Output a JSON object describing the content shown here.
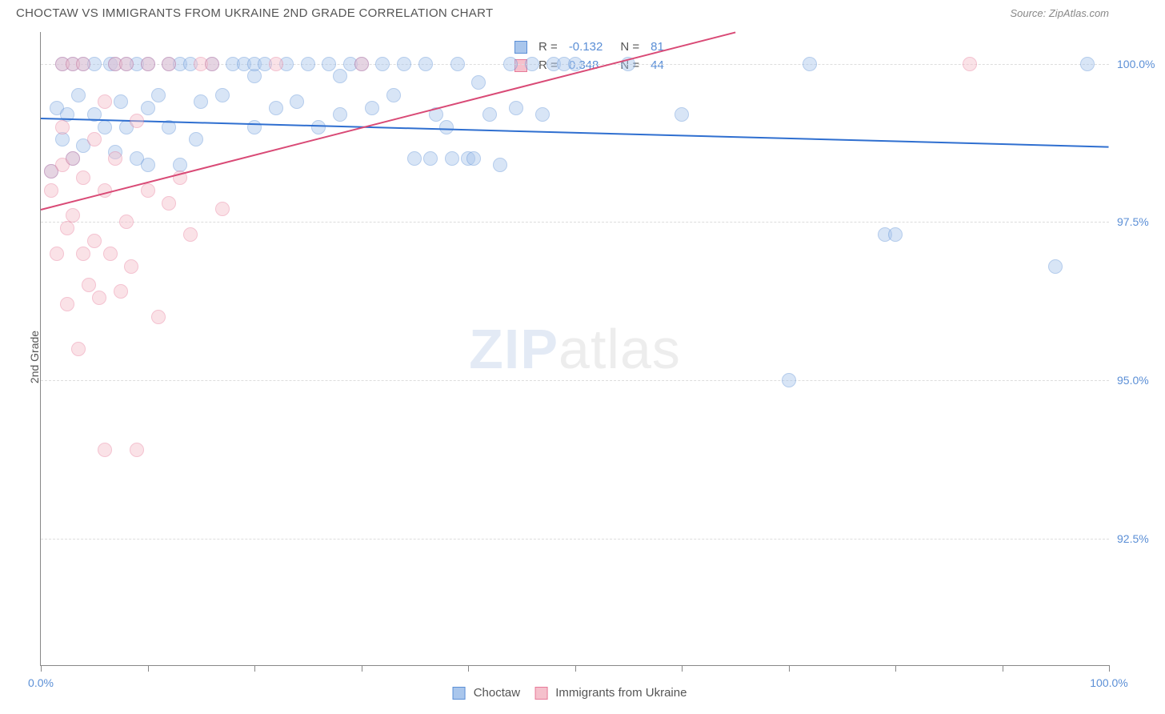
{
  "header": {
    "title": "CHOCTAW VS IMMIGRANTS FROM UKRAINE 2ND GRADE CORRELATION CHART",
    "source": "Source: ZipAtlas.com"
  },
  "chart": {
    "type": "scatter",
    "ylabel": "2nd Grade",
    "watermark_zip": "ZIP",
    "watermark_atlas": "atlas",
    "background_color": "#ffffff",
    "grid_color": "#dddddd",
    "axis_color": "#888888",
    "tick_label_color": "#5b8fd6",
    "xlim": [
      0,
      100
    ],
    "ylim": [
      90.5,
      100.5
    ],
    "ytick_values": [
      92.5,
      95.0,
      97.5,
      100.0
    ],
    "ytick_labels": [
      "92.5%",
      "95.0%",
      "97.5%",
      "100.0%"
    ],
    "xtick_values": [
      0,
      10,
      20,
      30,
      40,
      50,
      60,
      70,
      80,
      90,
      100
    ],
    "xtick_label_left": "0.0%",
    "xtick_label_right": "100.0%",
    "marker_radius": 9,
    "marker_opacity": 0.45,
    "series": [
      {
        "name": "Choctaw",
        "color_fill": "#a9c6ec",
        "color_stroke": "#5b8fd6",
        "trend": {
          "x1": 0,
          "y1": 99.15,
          "x2": 100,
          "y2": 98.7,
          "color": "#2f6fd0",
          "width": 2
        },
        "R": "-0.132",
        "N": "81",
        "points": [
          [
            1,
            98.3
          ],
          [
            1.5,
            99.3
          ],
          [
            2,
            100
          ],
          [
            2,
            98.8
          ],
          [
            2.5,
            99.2
          ],
          [
            3,
            100
          ],
          [
            3,
            98.5
          ],
          [
            3.5,
            99.5
          ],
          [
            4,
            100
          ],
          [
            4,
            98.7
          ],
          [
            5,
            99.2
          ],
          [
            5,
            100
          ],
          [
            6,
            99.0
          ],
          [
            6.5,
            100
          ],
          [
            7,
            98.6
          ],
          [
            7,
            100
          ],
          [
            7.5,
            99.4
          ],
          [
            8,
            99.0
          ],
          [
            8,
            100
          ],
          [
            9,
            100
          ],
          [
            9,
            98.5
          ],
          [
            10,
            100
          ],
          [
            10,
            99.3
          ],
          [
            10,
            98.4
          ],
          [
            11,
            99.5
          ],
          [
            12,
            100
          ],
          [
            12,
            99.0
          ],
          [
            13,
            100
          ],
          [
            13,
            98.4
          ],
          [
            14,
            100
          ],
          [
            14.5,
            98.8
          ],
          [
            15,
            99.4
          ],
          [
            16,
            100
          ],
          [
            17,
            99.5
          ],
          [
            18,
            100
          ],
          [
            19,
            100
          ],
          [
            20,
            99.0
          ],
          [
            20,
            99.8
          ],
          [
            20,
            100
          ],
          [
            21,
            100
          ],
          [
            22,
            99.3
          ],
          [
            23,
            100
          ],
          [
            24,
            99.4
          ],
          [
            25,
            100
          ],
          [
            26,
            99.0
          ],
          [
            27,
            100
          ],
          [
            28,
            99.2
          ],
          [
            28,
            99.8
          ],
          [
            29,
            100
          ],
          [
            30,
            100
          ],
          [
            31,
            99.3
          ],
          [
            32,
            100
          ],
          [
            33,
            99.5
          ],
          [
            34,
            100
          ],
          [
            35,
            98.5
          ],
          [
            36,
            100
          ],
          [
            36.5,
            98.5
          ],
          [
            37,
            99.2
          ],
          [
            38,
            99.0
          ],
          [
            38.5,
            98.5
          ],
          [
            39,
            100
          ],
          [
            40,
            98.5
          ],
          [
            40.5,
            98.5
          ],
          [
            41,
            99.7
          ],
          [
            42,
            99.2
          ],
          [
            43,
            98.4
          ],
          [
            44,
            100
          ],
          [
            44.5,
            99.3
          ],
          [
            46,
            100
          ],
          [
            47,
            99.2
          ],
          [
            48,
            100
          ],
          [
            49,
            100
          ],
          [
            50,
            100
          ],
          [
            55,
            100
          ],
          [
            60,
            99.2
          ],
          [
            70,
            95.0
          ],
          [
            72,
            100
          ],
          [
            79,
            97.3
          ],
          [
            80,
            97.3
          ],
          [
            95,
            96.8
          ],
          [
            98,
            100
          ]
        ]
      },
      {
        "name": "Immigrants from Ukraine",
        "color_fill": "#f5c0cc",
        "color_stroke": "#e77a99",
        "trend": {
          "x1": 0,
          "y1": 97.7,
          "x2": 65,
          "y2": 100.5,
          "color": "#d94a76",
          "width": 2
        },
        "R": "0.348",
        "N": "44",
        "points": [
          [
            1,
            98.3
          ],
          [
            1,
            98.0
          ],
          [
            1.5,
            97.0
          ],
          [
            2,
            98.4
          ],
          [
            2,
            99.0
          ],
          [
            2,
            100
          ],
          [
            2.5,
            96.2
          ],
          [
            2.5,
            97.4
          ],
          [
            3,
            97.6
          ],
          [
            3,
            98.5
          ],
          [
            3,
            100
          ],
          [
            3.5,
            95.5
          ],
          [
            4,
            97.0
          ],
          [
            4,
            98.2
          ],
          [
            4,
            100
          ],
          [
            4.5,
            96.5
          ],
          [
            5,
            97.2
          ],
          [
            5,
            98.8
          ],
          [
            5.5,
            96.3
          ],
          [
            6,
            98.0
          ],
          [
            6,
            99.4
          ],
          [
            6,
            93.9
          ],
          [
            6.5,
            97.0
          ],
          [
            7,
            98.5
          ],
          [
            7,
            100
          ],
          [
            7.5,
            96.4
          ],
          [
            8,
            97.5
          ],
          [
            8,
            100
          ],
          [
            8.5,
            96.8
          ],
          [
            9,
            99.1
          ],
          [
            9,
            93.9
          ],
          [
            10,
            100
          ],
          [
            10,
            98.0
          ],
          [
            11,
            96.0
          ],
          [
            12,
            100
          ],
          [
            12,
            97.8
          ],
          [
            13,
            98.2
          ],
          [
            14,
            97.3
          ],
          [
            15,
            100
          ],
          [
            16,
            100
          ],
          [
            17,
            97.7
          ],
          [
            22,
            100
          ],
          [
            30,
            100
          ],
          [
            87,
            100
          ]
        ]
      }
    ],
    "stats_legend": {
      "R_label": "R =",
      "N_label": "N ="
    },
    "bottom_legend": {
      "items": [
        {
          "label": "Choctaw",
          "fill": "#a9c6ec",
          "stroke": "#5b8fd6"
        },
        {
          "label": "Immigrants from Ukraine",
          "fill": "#f5c0cc",
          "stroke": "#e77a99"
        }
      ]
    }
  }
}
